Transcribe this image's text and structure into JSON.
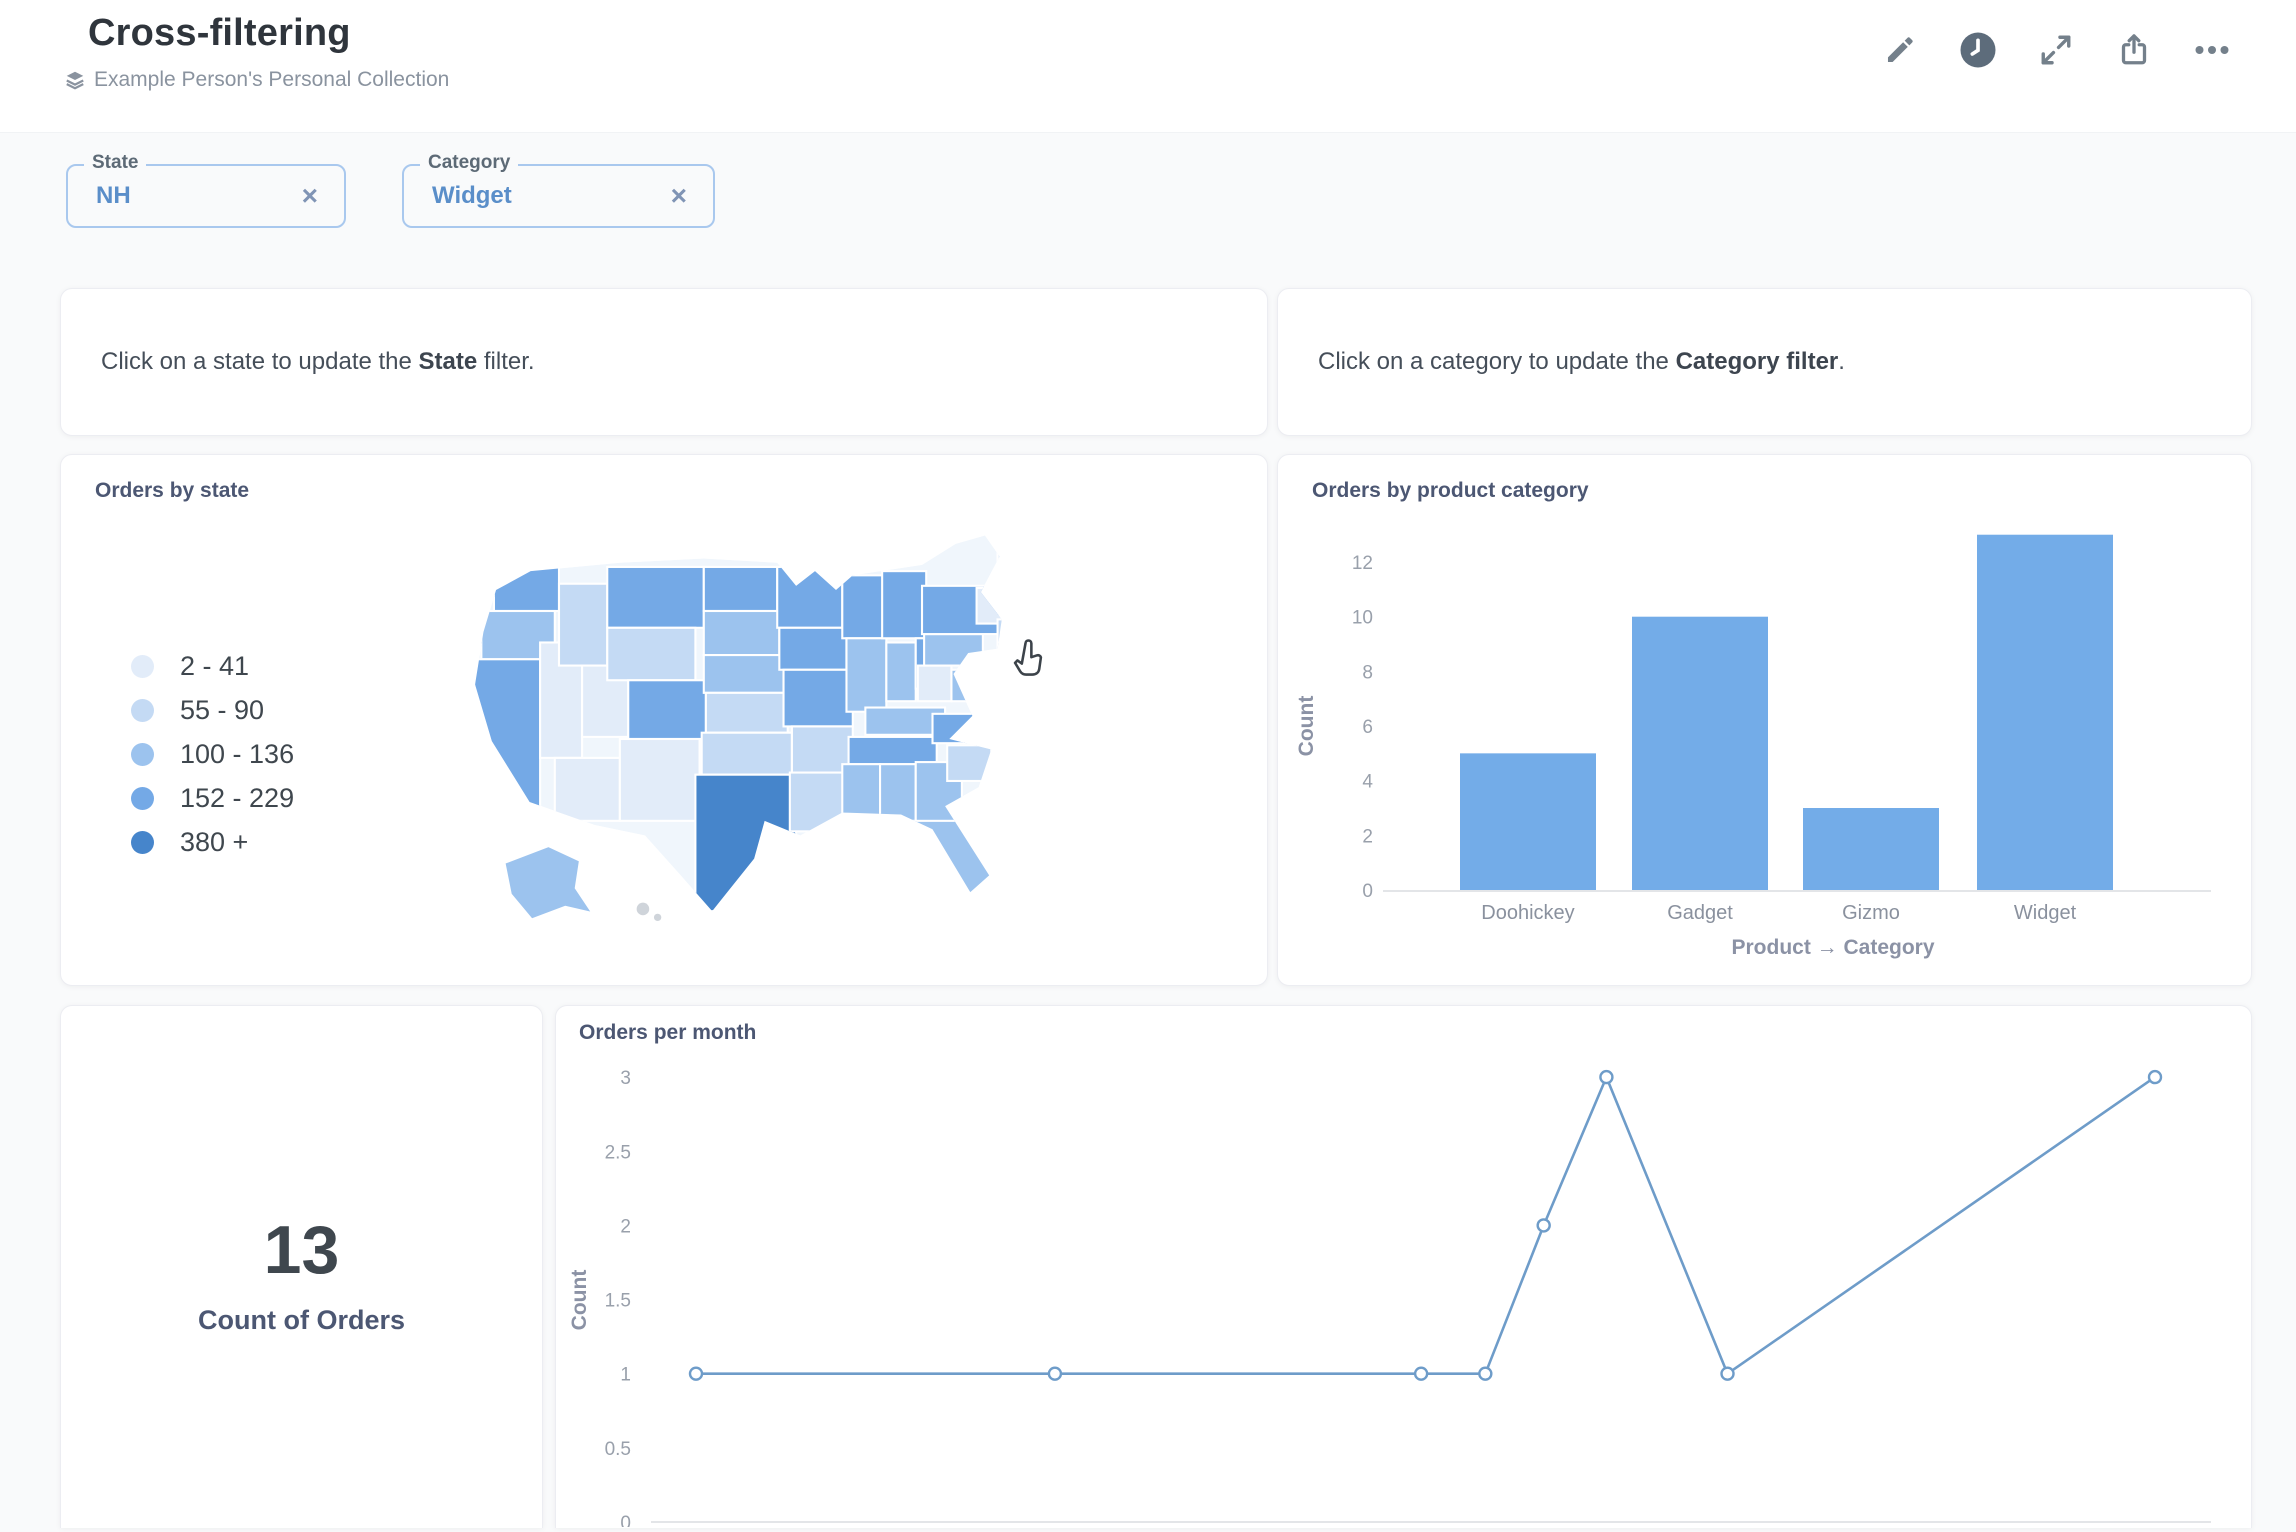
{
  "header": {
    "title": "Cross-filtering",
    "collection": {
      "icon": "layers-icon",
      "label": "Example Person's Personal Collection"
    },
    "actions": [
      {
        "name": "edit",
        "icon": "pencil-icon"
      },
      {
        "name": "history",
        "icon": "clock-icon"
      },
      {
        "name": "fullscreen",
        "icon": "expand-icon"
      },
      {
        "name": "share",
        "icon": "share-icon"
      },
      {
        "name": "more-options",
        "icon": "ellipsis-icon"
      }
    ]
  },
  "filters": [
    {
      "label": "State",
      "value": "NH",
      "clear": "×"
    },
    {
      "label": "Category",
      "value": "Widget",
      "clear": "×"
    }
  ],
  "text_cards": [
    {
      "segments": [
        {
          "text": "Click on a state to update the ",
          "bold": false
        },
        {
          "text": "State",
          "bold": true
        },
        {
          "text": " filter.",
          "bold": false
        }
      ]
    },
    {
      "segments": [
        {
          "text": "Click on a category to update the ",
          "bold": false
        },
        {
          "text": "Category filter",
          "bold": true
        },
        {
          "text": ".",
          "bold": false
        }
      ]
    }
  ],
  "chart_data": [
    {
      "type": "choropleth",
      "title": "Orders by state",
      "legend": [
        {
          "label": "2 - 41",
          "color": "#E2ECF9"
        },
        {
          "label": "55 - 90",
          "color": "#C4DAF4"
        },
        {
          "label": "100 - 136",
          "color": "#9CC3EE"
        },
        {
          "label": "152 - 229",
          "color": "#74A9E6"
        },
        {
          "label": "380 +",
          "color": "#4685CB"
        }
      ],
      "no_data_color": "#cfd4da",
      "states": [
        {
          "abbr": "WA",
          "bin": 3
        },
        {
          "abbr": "OR",
          "bin": 2
        },
        {
          "abbr": "CA",
          "bin": 3
        },
        {
          "abbr": "NV",
          "bin": 0
        },
        {
          "abbr": "ID",
          "bin": 1
        },
        {
          "abbr": "UT",
          "bin": 0
        },
        {
          "abbr": "AZ",
          "bin": 0
        },
        {
          "abbr": "MT",
          "bin": 3
        },
        {
          "abbr": "WY",
          "bin": 1
        },
        {
          "abbr": "CO",
          "bin": 3
        },
        {
          "abbr": "NM",
          "bin": 0
        },
        {
          "abbr": "ND",
          "bin": 3
        },
        {
          "abbr": "SD",
          "bin": 2
        },
        {
          "abbr": "NE",
          "bin": 2
        },
        {
          "abbr": "KS",
          "bin": 1
        },
        {
          "abbr": "OK",
          "bin": 1
        },
        {
          "abbr": "TX",
          "bin": 4
        },
        {
          "abbr": "MN",
          "bin": 3
        },
        {
          "abbr": "IA",
          "bin": 3
        },
        {
          "abbr": "MO",
          "bin": 3
        },
        {
          "abbr": "AR",
          "bin": 1
        },
        {
          "abbr": "LA",
          "bin": 1
        },
        {
          "abbr": "WI",
          "bin": 3
        },
        {
          "abbr": "IL",
          "bin": 2
        },
        {
          "abbr": "MI",
          "bin": 3
        },
        {
          "abbr": "IN",
          "bin": 2
        },
        {
          "abbr": "OH",
          "bin": 3
        },
        {
          "abbr": "KY",
          "bin": 2
        },
        {
          "abbr": "TN",
          "bin": 3
        },
        {
          "abbr": "MS",
          "bin": 2
        },
        {
          "abbr": "AL",
          "bin": 2
        },
        {
          "abbr": "GA",
          "bin": 2
        },
        {
          "abbr": "FL",
          "bin": 2
        },
        {
          "abbr": "SC",
          "bin": 1
        },
        {
          "abbr": "NC",
          "bin": 3
        },
        {
          "abbr": "VA",
          "bin": 2
        },
        {
          "abbr": "WV",
          "bin": 0
        },
        {
          "abbr": "PA",
          "bin": 2
        },
        {
          "abbr": "NY",
          "bin": 3
        },
        {
          "abbr": "VT/NH",
          "bin": 0
        },
        {
          "abbr": "ME",
          "bin": 0
        },
        {
          "abbr": "MA/CT/RI",
          "bin": 1
        },
        {
          "abbr": "MD/DE",
          "bin": 0
        },
        {
          "abbr": "AK",
          "bin": 2
        },
        {
          "abbr": "HI",
          "bin": null
        }
      ]
    },
    {
      "type": "bar",
      "title": "Orders by product category",
      "categories": [
        "Doohickey",
        "Gadget",
        "Gizmo",
        "Widget"
      ],
      "values": [
        5,
        10,
        3,
        13
      ],
      "xlabel": "Product → Category",
      "ylabel": "Count",
      "yticks": [
        0,
        2,
        4,
        6,
        8,
        10,
        12
      ],
      "ylim": [
        0,
        13.3
      ],
      "bar_color": "#73ACE8"
    },
    {
      "type": "scalar",
      "value": "13",
      "label": "Count of Orders"
    },
    {
      "type": "line",
      "title": "Orders per month",
      "ylabel": "Count",
      "yticks": [
        0,
        0.5,
        1,
        1.5,
        2,
        2.5,
        3
      ],
      "ylim": [
        0,
        3.1
      ],
      "x_positions": [
        0,
        0.246,
        0.497,
        0.541,
        0.581,
        0.624,
        0.707,
        1
      ],
      "values": [
        1,
        1,
        1,
        1,
        2,
        3,
        1,
        3
      ],
      "line_color": "#6E9CC9",
      "point_fill": "#ffffff"
    }
  ]
}
